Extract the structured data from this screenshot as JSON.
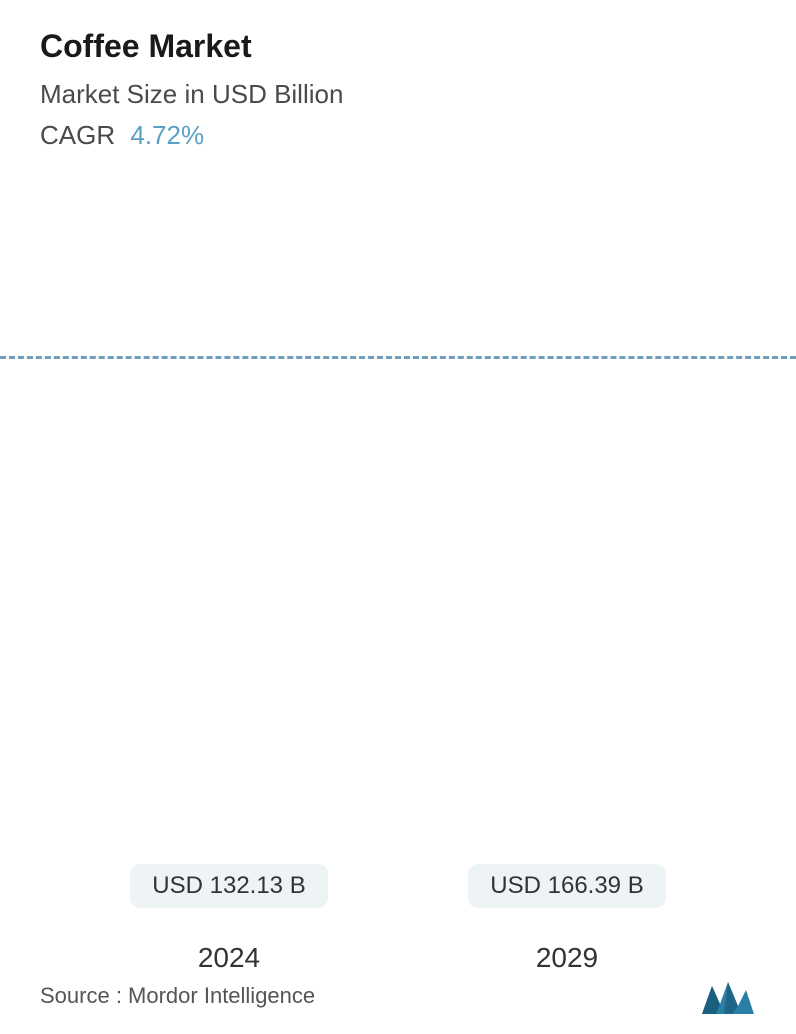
{
  "header": {
    "title": "Coffee Market",
    "subtitle": "Market Size in USD Billion",
    "cagr_label": "CAGR",
    "cagr_value": "4.72%"
  },
  "chart": {
    "type": "bar",
    "categories": [
      "2024",
      "2029"
    ],
    "values": [
      132.13,
      166.39
    ],
    "value_labels": [
      "USD 132.13 B",
      "USD 166.39 B"
    ],
    "ylim": [
      0,
      170
    ],
    "bar_gradient_top": "#6f9fb9",
    "bar_gradient_bottom": "#b3d6d4",
    "background_color": "#ffffff",
    "dashed_line_value": 132.13,
    "dashed_line_color": "#6f9fb9",
    "badge_bg": "#eef3f5",
    "badge_text_color": "#333333",
    "xlabel_fontsize": 28,
    "value_label_fontsize": 24,
    "title_fontsize": 32,
    "subtitle_fontsize": 26,
    "bar_width_pct": 40
  },
  "footer": {
    "source_text": "Source :  Mordor Intelligence",
    "logo_color_primary": "#2a7fa8",
    "logo_color_secondary": "#1b5f80"
  }
}
